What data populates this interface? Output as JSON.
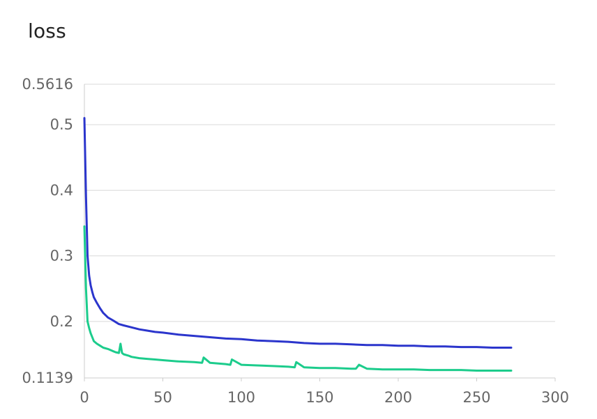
{
  "chart_data": {
    "type": "line",
    "title": "loss",
    "xlabel": "",
    "ylabel": "",
    "xlim": [
      0,
      300
    ],
    "ylim": [
      0.1139,
      0.5616
    ],
    "x_ticks": [
      0,
      50,
      100,
      150,
      200,
      250,
      300
    ],
    "y_ticks": [
      0.1139,
      0.2,
      0.3,
      0.4,
      0.5,
      0.5616
    ],
    "y_tick_labels": [
      "0.1139",
      "0.2",
      "0.3",
      "0.4",
      "0.5",
      "0.5616"
    ],
    "grid": "horizontal",
    "legend": "none",
    "series": [
      {
        "color": "#2b35cc",
        "x": [
          0,
          1,
          2,
          3,
          4,
          5,
          6,
          8,
          10,
          12,
          15,
          18,
          20,
          22,
          25,
          30,
          35,
          40,
          45,
          50,
          60,
          70,
          80,
          90,
          100,
          110,
          120,
          130,
          140,
          150,
          160,
          170,
          180,
          190,
          200,
          210,
          220,
          230,
          240,
          250,
          260,
          270,
          272
        ],
        "y": [
          0.51,
          0.39,
          0.3,
          0.27,
          0.255,
          0.245,
          0.237,
          0.228,
          0.22,
          0.213,
          0.206,
          0.202,
          0.199,
          0.196,
          0.194,
          0.191,
          0.188,
          0.186,
          0.184,
          0.183,
          0.18,
          0.178,
          0.176,
          0.174,
          0.173,
          0.171,
          0.17,
          0.169,
          0.167,
          0.166,
          0.166,
          0.165,
          0.164,
          0.164,
          0.163,
          0.163,
          0.162,
          0.162,
          0.161,
          0.161,
          0.16,
          0.16,
          0.16
        ]
      },
      {
        "color": "#1ccc8c",
        "x": [
          0,
          1,
          2,
          3,
          4,
          5,
          6,
          8,
          10,
          12,
          15,
          18,
          20,
          22,
          23,
          24,
          25,
          28,
          30,
          35,
          40,
          45,
          50,
          60,
          70,
          75,
          76,
          80,
          90,
          93,
          94,
          100,
          110,
          120,
          130,
          134,
          135,
          140,
          150,
          160,
          170,
          173,
          175,
          180,
          190,
          200,
          210,
          220,
          230,
          240,
          250,
          260,
          270,
          272
        ],
        "y": [
          0.345,
          0.25,
          0.2,
          0.19,
          0.182,
          0.176,
          0.17,
          0.166,
          0.163,
          0.16,
          0.158,
          0.155,
          0.153,
          0.152,
          0.166,
          0.152,
          0.15,
          0.148,
          0.146,
          0.144,
          0.143,
          0.142,
          0.141,
          0.139,
          0.138,
          0.137,
          0.145,
          0.137,
          0.135,
          0.134,
          0.142,
          0.134,
          0.133,
          0.132,
          0.131,
          0.13,
          0.138,
          0.13,
          0.129,
          0.129,
          0.128,
          0.128,
          0.134,
          0.128,
          0.127,
          0.127,
          0.127,
          0.126,
          0.126,
          0.126,
          0.125,
          0.125,
          0.125,
          0.125
        ]
      }
    ]
  }
}
